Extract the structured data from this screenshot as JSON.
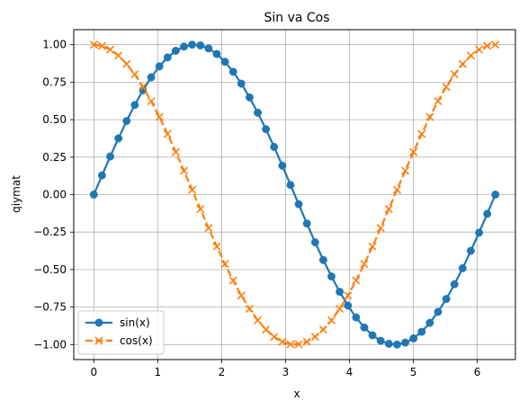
{
  "chart_data": {
    "type": "line",
    "title": "Sin va Cos",
    "xlabel": "x",
    "ylabel": "qiymat",
    "xlim": [
      -0.314,
      6.597
    ],
    "ylim": [
      -1.1,
      1.1
    ],
    "xticks": [
      0,
      1,
      2,
      3,
      4,
      5,
      6
    ],
    "xtick_labels": [
      "0",
      "1",
      "2",
      "3",
      "4",
      "5",
      "6"
    ],
    "yticks": [
      -1.0,
      -0.75,
      -0.5,
      -0.25,
      0.0,
      0.25,
      0.5,
      0.75,
      1.0
    ],
    "ytick_labels": [
      "−1.00",
      "−0.75",
      "−0.50",
      "−0.25",
      "0.00",
      "0.25",
      "0.50",
      "0.75",
      "1.00"
    ],
    "grid": true,
    "legend_position": "lower-left",
    "x": [
      0,
      0.128,
      0.256,
      0.385,
      0.513,
      0.641,
      0.769,
      0.898,
      1.026,
      1.154,
      1.282,
      1.411,
      1.539,
      1.667,
      1.795,
      1.924,
      2.052,
      2.18,
      2.308,
      2.437,
      2.565,
      2.693,
      2.821,
      2.95,
      3.078,
      3.206,
      3.334,
      3.463,
      3.591,
      3.719,
      3.847,
      3.976,
      4.104,
      4.232,
      4.36,
      4.489,
      4.617,
      4.745,
      4.873,
      5.002,
      5.13,
      5.258,
      5.386,
      5.515,
      5.643,
      5.771,
      5.899,
      6.028,
      6.156,
      6.283
    ],
    "series": [
      {
        "name": "sin(x)",
        "color": "#1f77b4",
        "marker": "circle",
        "values": [
          0.0,
          0.128,
          0.254,
          0.375,
          0.491,
          0.598,
          0.696,
          0.782,
          0.855,
          0.915,
          0.959,
          0.987,
          1.0,
          0.995,
          0.975,
          0.938,
          0.886,
          0.819,
          0.74,
          0.648,
          0.546,
          0.436,
          0.318,
          0.193,
          0.064,
          -0.064,
          -0.193,
          -0.318,
          -0.436,
          -0.546,
          -0.648,
          -0.74,
          -0.819,
          -0.886,
          -0.938,
          -0.975,
          -0.995,
          -1.0,
          -0.987,
          -0.959,
          -0.915,
          -0.855,
          -0.782,
          -0.696,
          -0.598,
          -0.491,
          -0.375,
          -0.254,
          -0.128,
          0.0
        ]
      },
      {
        "name": "cos(x)",
        "color": "#ff7f0e",
        "marker": "x",
        "values": [
          1.0,
          0.992,
          0.967,
          0.927,
          0.871,
          0.802,
          0.718,
          0.623,
          0.518,
          0.404,
          0.284,
          0.159,
          0.032,
          -0.096,
          -0.223,
          -0.346,
          -0.463,
          -0.573,
          -0.673,
          -0.762,
          -0.838,
          -0.9,
          -0.948,
          -0.981,
          -0.998,
          -0.998,
          -0.981,
          -0.948,
          -0.9,
          -0.838,
          -0.762,
          -0.673,
          -0.573,
          -0.463,
          -0.346,
          -0.223,
          -0.096,
          0.032,
          0.159,
          0.284,
          0.404,
          0.518,
          0.623,
          0.718,
          0.802,
          0.871,
          0.927,
          0.967,
          0.992,
          1.0
        ]
      }
    ]
  }
}
